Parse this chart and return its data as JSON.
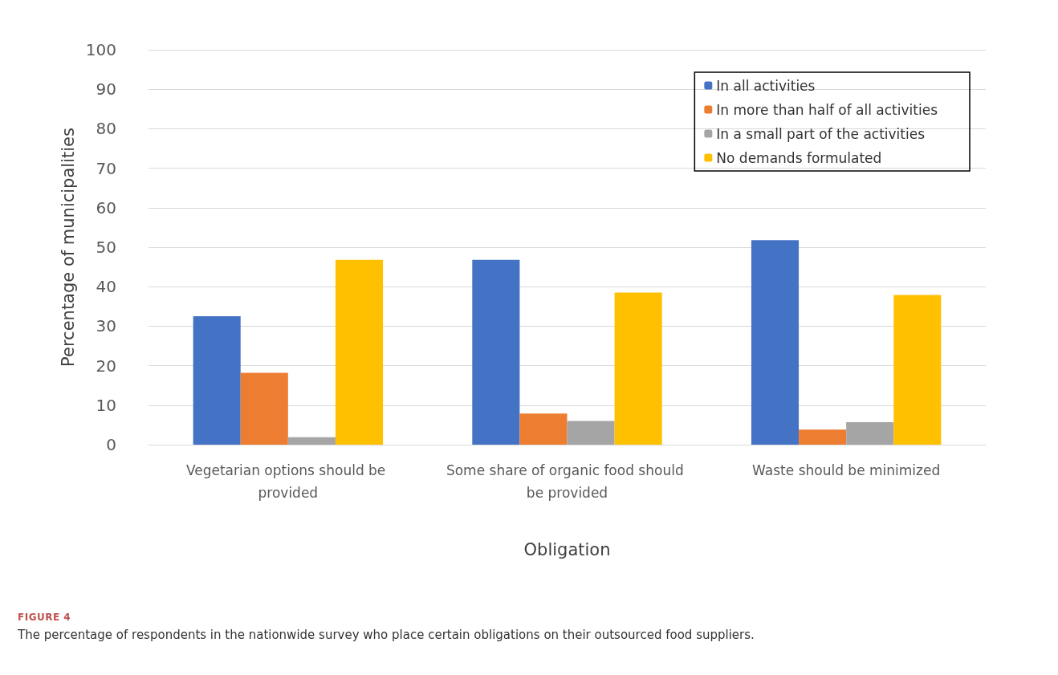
{
  "chart_data": {
    "type": "bar",
    "xlabel": "Obligation",
    "ylabel": "Percentage of municipalities",
    "categories": [
      "Vegetarian options should be provided",
      "Some share of organic food should be provided",
      "Waste should be minimized"
    ],
    "series": [
      {
        "name": "In all activities",
        "color": "#4472c4",
        "values": [
          32.5,
          46.8,
          51.8
        ]
      },
      {
        "name": "In more than half of all activities",
        "color": "#ed7d31",
        "values": [
          18.2,
          7.9,
          3.8
        ]
      },
      {
        "name": "In a small part of the activities",
        "color": "#a5a5a5",
        "values": [
          1.9,
          6.0,
          5.7
        ]
      },
      {
        "name": "No demands formulated",
        "color": "#ffc000",
        "values": [
          46.8,
          38.5,
          37.9
        ]
      }
    ],
    "ylim": [
      0,
      100
    ],
    "yticks": [
      0,
      10,
      20,
      30,
      40,
      50,
      60,
      70,
      80,
      90,
      100
    ],
    "grid": "y",
    "legend": "top right",
    "annotations": [
      "FIGURE 4",
      "The percentage of respondents in the nationwide survey who place certain obligations on their outsourced food suppliers."
    ]
  }
}
